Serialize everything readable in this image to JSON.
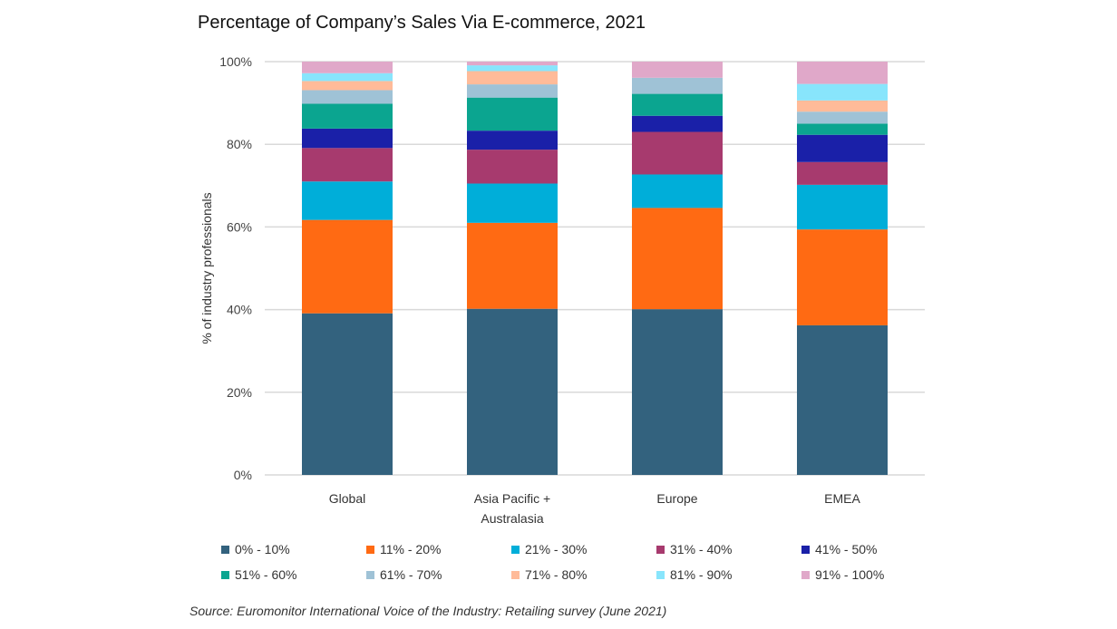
{
  "chart_data": {
    "type": "bar",
    "stacked": true,
    "title": "Percentage of Company’s Sales Via E-commerce, 2021",
    "ylabel": "% of industry professionals",
    "xlabel": "",
    "ylim": [
      0,
      100
    ],
    "yticks": [
      "0%",
      "20%",
      "40%",
      "60%",
      "80%",
      "100%"
    ],
    "grid": true,
    "legend_position": "bottom",
    "categories": [
      "Global",
      "Asia Pacific + Australasia",
      "Europe",
      "EMEA"
    ],
    "category_lines": [
      [
        "Global"
      ],
      [
        "Asia Pacific +",
        "Australasia"
      ],
      [
        "Europe"
      ],
      [
        "EMEA"
      ]
    ],
    "series": [
      {
        "name": "0% - 10%",
        "color": "#33627e",
        "values": [
          39.1,
          40.2,
          40.1,
          36.2
        ]
      },
      {
        "name": "11% - 20%",
        "color": "#ff6a13",
        "values": [
          22.6,
          20.8,
          24.5,
          23.2
        ]
      },
      {
        "name": "21% - 30%",
        "color": "#00aed9",
        "values": [
          9.3,
          9.5,
          8.1,
          10.8
        ]
      },
      {
        "name": "31% - 40%",
        "color": "#a73a6e",
        "values": [
          8.1,
          8.2,
          10.3,
          5.5
        ]
      },
      {
        "name": "41% - 50%",
        "color": "#1a20a8",
        "values": [
          4.7,
          4.6,
          3.9,
          6.6
        ]
      },
      {
        "name": "51% - 60%",
        "color": "#0ba590",
        "values": [
          6.0,
          8.0,
          5.3,
          2.7
        ]
      },
      {
        "name": "61% - 70%",
        "color": "#9fc2d6",
        "values": [
          3.3,
          3.2,
          3.9,
          2.9
        ]
      },
      {
        "name": "71% - 80%",
        "color": "#ffbb99",
        "values": [
          2.2,
          3.2,
          0,
          2.7
        ]
      },
      {
        "name": "81% - 90%",
        "color": "#88e5fc",
        "values": [
          1.9,
          1.4,
          0,
          4.0
        ]
      },
      {
        "name": "91% - 100%",
        "color": "#e0a8c9",
        "values": [
          2.8,
          0.9,
          3.9,
          5.4
        ]
      }
    ],
    "source": "Source: Euromonitor International Voice of the Industry: Retailing survey (June 2021)"
  }
}
